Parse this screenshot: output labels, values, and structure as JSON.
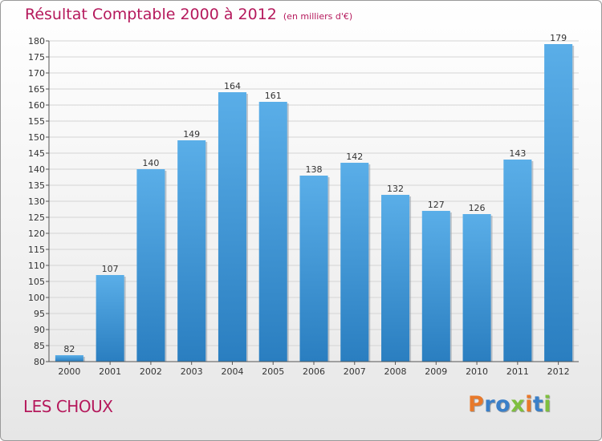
{
  "chart_data": {
    "type": "bar",
    "title": "Résultat Comptable 2000 à 2012",
    "subtitle": "(en milliers d'€)",
    "categories": [
      "2000",
      "2001",
      "2002",
      "2003",
      "2004",
      "2005",
      "2006",
      "2007",
      "2008",
      "2009",
      "2010",
      "2011",
      "2012"
    ],
    "values": [
      82,
      107,
      140,
      149,
      164,
      161,
      138,
      142,
      132,
      127,
      126,
      143,
      179
    ],
    "ylim": [
      80,
      180
    ],
    "yticks": [
      80,
      85,
      90,
      95,
      100,
      105,
      110,
      115,
      120,
      125,
      130,
      135,
      140,
      145,
      150,
      155,
      160,
      165,
      170,
      175,
      180
    ],
    "xlabel": "",
    "ylabel": "",
    "grid": true,
    "bar_color": "#3a93d6"
  },
  "footer": {
    "commune": "LES CHOUX",
    "logo_letters": [
      "P",
      "r",
      "o",
      "x",
      "i",
      "t",
      "i"
    ],
    "logo_colors": [
      "#e8792a",
      "#3a7fc8",
      "#3a7fc8",
      "#7fbf3f",
      "#e8792a",
      "#3a7fc8",
      "#7fbf3f"
    ]
  }
}
